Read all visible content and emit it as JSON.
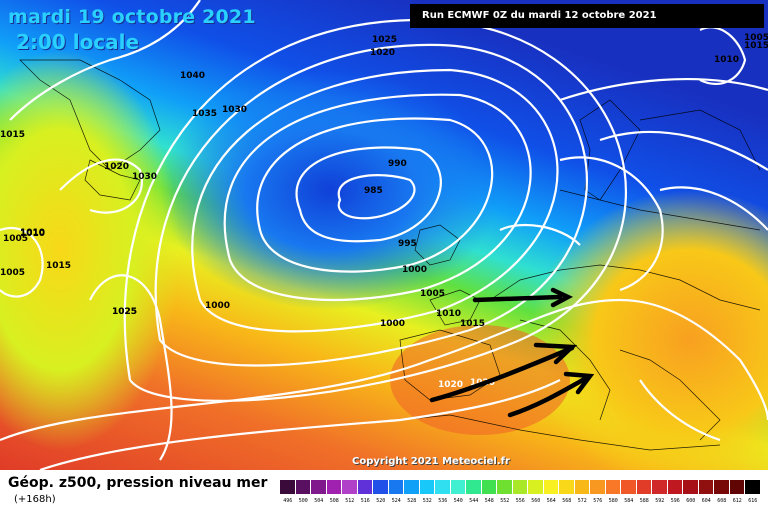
{
  "header": {
    "date": "mardi 19 octobre 2021",
    "time": "2:00 locale",
    "run": "Run ECMWF 0Z du mardi 12 octobre 2021",
    "copyright": "Copyright 2021 Meteociel.fr"
  },
  "isobars": [
    "1040",
    "1035",
    "1030",
    "1025",
    "1020",
    "1015",
    "1010",
    "1005",
    "1000",
    "995",
    "990",
    "985",
    "1025",
    "1020",
    "1030",
    "1015",
    "1010",
    "1005",
    "1000",
    "1005",
    "1010",
    "1015",
    "1000",
    "1020",
    "1020",
    "1005",
    "1010",
    "1015",
    "1025"
  ],
  "legend": {
    "title": "Géop. z500, pression niveau mer",
    "subtitle": "(+168h)",
    "labels": [
      "496",
      "500",
      "504",
      "508",
      "512",
      "516",
      "520",
      "524",
      "528",
      "532",
      "536",
      "540",
      "544",
      "548",
      "552",
      "556",
      "560",
      "564",
      "568",
      "572",
      "576",
      "580",
      "584",
      "588",
      "592",
      "596",
      "600",
      "604",
      "608",
      "612",
      "616"
    ],
    "colors": [
      "#3a0a3a",
      "#5a1060",
      "#801a8c",
      "#a020b0",
      "#b040c8",
      "#6030d8",
      "#2050e8",
      "#1878f0",
      "#10a0f8",
      "#18c8f8",
      "#30e0f0",
      "#40f0d0",
      "#30e890",
      "#40e050",
      "#70e030",
      "#a8e828",
      "#d8f020",
      "#f8f020",
      "#f8d818",
      "#f8b818",
      "#f89820",
      "#f87828",
      "#f05828",
      "#e03c28",
      "#d02828",
      "#c01820",
      "#a81018",
      "#901010",
      "#780808",
      "#600404",
      "#000000"
    ]
  },
  "colors": {
    "arrow": "#000000",
    "isobar": "#ffffff",
    "title": "#2ad0ff"
  }
}
